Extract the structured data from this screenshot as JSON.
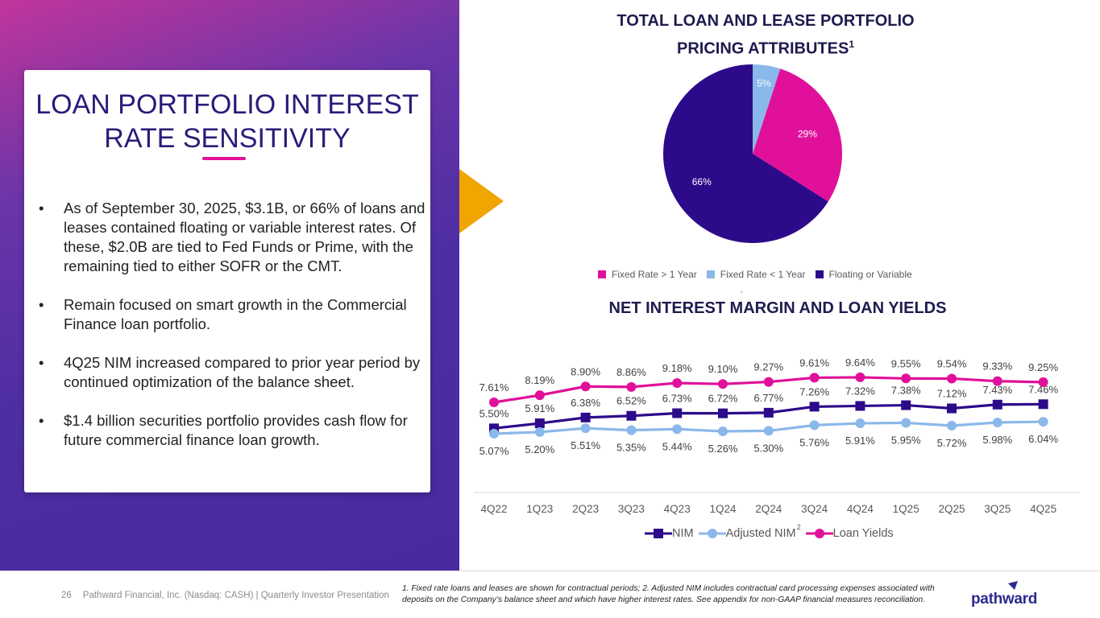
{
  "card": {
    "title_line1": "LOAN PORTFOLIO INTEREST",
    "title_line2": "RATE SENSITIVITY",
    "bullets": [
      "As of September 30, 2025, $3.1B, or 66% of loans and leases contained floating or variable interest rates. Of these, $2.0B are tied to Fed Funds or Prime, with the remaining tied to either SOFR or the CMT.",
      "Remain focused on smart growth in the Commercial Finance loan portfolio.",
      "4Q25 NIM increased compared to prior year period by continued optimization of the balance sheet.",
      "$1.4 billion securities portfolio provides cash flow for future commercial finance loan growth."
    ],
    "bullet_symbol": "•"
  },
  "pie": {
    "title_line1": "TOTAL LOAN AND LEASE PORTFOLIO",
    "title_line2": "PRICING ATTRIBUTES",
    "title_sup": "1"
  },
  "line": {
    "title": "NET INTEREST MARGIN AND LOAN YIELDS"
  },
  "chart_data": [
    {
      "type": "pie",
      "title": "TOTAL LOAN AND LEASE PORTFOLIO PRICING ATTRIBUTES",
      "legend_position": "bottom",
      "slices": [
        {
          "name": "Fixed Rate > 1 Year",
          "value": 29,
          "label": "29%",
          "color": "#e0109a"
        },
        {
          "name": "Floating or Variable",
          "value": 66,
          "label": "66%",
          "color": "#2d0a8a"
        },
        {
          "name": "Fixed Rate < 1 Year",
          "value": 5,
          "label": "5%",
          "color": "#8bb8ea"
        }
      ]
    },
    {
      "type": "line",
      "title": "NET INTEREST MARGIN AND LOAN YIELDS",
      "legend_position": "bottom",
      "categories": [
        "4Q22",
        "1Q23",
        "2Q23",
        "3Q23",
        "4Q23",
        "1Q24",
        "2Q24",
        "3Q24",
        "4Q24",
        "1Q25",
        "2Q25",
        "3Q25",
        "4Q25"
      ],
      "ylim": [
        4.0,
        10.0
      ],
      "series": [
        {
          "name": "NIM",
          "marker": "square",
          "color": "#2d0a8a",
          "values": [
            5.5,
            5.91,
            6.38,
            6.52,
            6.73,
            6.72,
            6.77,
            7.26,
            7.32,
            7.38,
            7.12,
            7.43,
            7.46
          ],
          "labels": [
            "5.50%",
            "5.91%",
            "6.38%",
            "6.52%",
            "6.73%",
            "6.72%",
            "6.77%",
            "7.26%",
            "7.32%",
            "7.38%",
            "7.12%",
            "7.43%",
            "7.46%"
          ]
        },
        {
          "name": "Adjusted NIM",
          "sup": "2",
          "marker": "circle",
          "color": "#8bb8ea",
          "values": [
            5.07,
            5.2,
            5.51,
            5.35,
            5.44,
            5.26,
            5.3,
            5.76,
            5.91,
            5.95,
            5.72,
            5.98,
            6.04
          ],
          "labels": [
            "5.07%",
            "5.20%",
            "5.51%",
            "5.35%",
            "5.44%",
            "5.26%",
            "5.30%",
            "5.76%",
            "5.91%",
            "5.95%",
            "5.72%",
            "5.98%",
            "6.04%"
          ]
        },
        {
          "name": "Loan Yields",
          "marker": "circle",
          "color": "#e0109a",
          "values": [
            7.61,
            8.19,
            8.9,
            8.86,
            9.18,
            9.1,
            9.27,
            9.61,
            9.64,
            9.55,
            9.54,
            9.33,
            9.25
          ],
          "labels": [
            "7.61%",
            "8.19%",
            "8.90%",
            "8.86%",
            "9.18%",
            "9.10%",
            "9.27%",
            "9.61%",
            "9.64%",
            "9.55%",
            "9.54%",
            "9.33%",
            "9.25%"
          ]
        }
      ]
    }
  ],
  "footer": {
    "page_number": "26",
    "company": "Pathward Financial, Inc. (Nasdaq: CASH) | Quarterly Investor Presentation",
    "footnote": "1. Fixed rate loans and leases are shown for contractual periods; 2. Adjusted NIM includes contractual card processing expenses associated with deposits on the Company’s balance sheet and which have higher interest rates. See appendix for non-GAAP financial measures reconciliation.",
    "logo_text": "pathward"
  },
  "colors": {
    "brand_purple": "#4f2ea4",
    "brand_pink": "#e0109a",
    "accent_gold": "#f0a500",
    "navy_text": "#1e1b4f"
  }
}
